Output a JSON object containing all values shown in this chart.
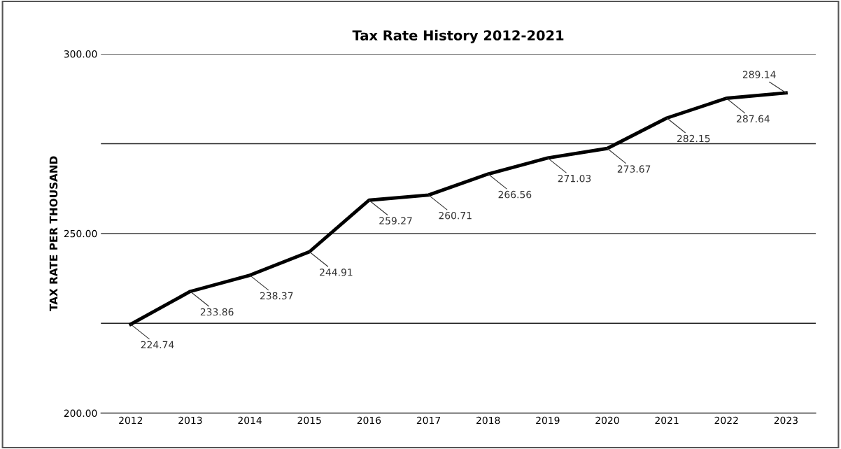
{
  "chart_data": {
    "type": "line",
    "title": "Tax Rate History 2012-2021",
    "ylabel": "TAX RATE PER THOUSAND",
    "categories": [
      "2012",
      "2013",
      "2014",
      "2015",
      "2016",
      "2017",
      "2018",
      "2019",
      "2020",
      "2021",
      "2022",
      "2023"
    ],
    "series": [
      {
        "color": "#000000",
        "values": [
          224.74,
          233.86,
          238.37,
          244.91,
          259.27,
          260.71,
          266.56,
          271.03,
          273.67,
          282.15,
          287.64,
          289.14
        ]
      }
    ],
    "ylim": [
      200,
      300
    ],
    "yticks": [
      {
        "value": 200,
        "label": "200.00"
      },
      {
        "value": 225,
        "label": null
      },
      {
        "value": 250,
        "label": "250.00"
      },
      {
        "value": 275,
        "label": null
      },
      {
        "value": 300,
        "label": "300.00"
      }
    ],
    "grid": "y",
    "data_labels": true,
    "marker": "none",
    "line_style": "solid"
  }
}
